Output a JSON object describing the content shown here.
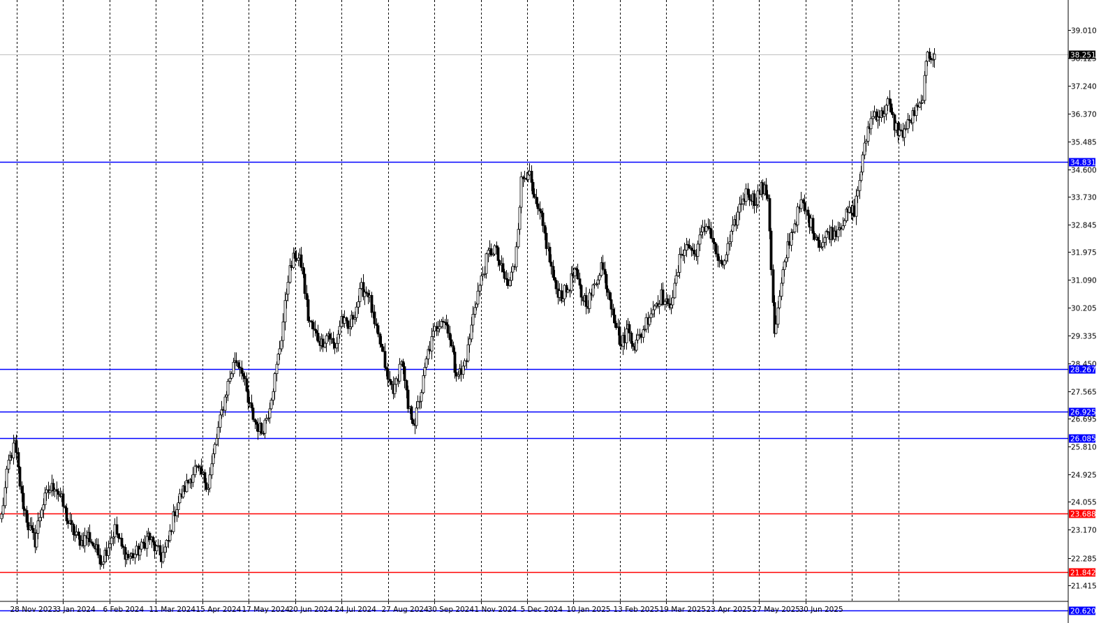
{
  "chart_data": {
    "type": "candlestick",
    "title": "",
    "xlabel": "",
    "ylabel": "",
    "ylim": [
      20.35,
      40.1
    ],
    "grid": {
      "vertical": true,
      "horizontal": false,
      "style": "dashed"
    },
    "y_ticks": [
      "39.010",
      "38.125",
      "37.240",
      "36.370",
      "35.485",
      "34.600",
      "33.730",
      "32.845",
      "31.975",
      "31.090",
      "30.205",
      "29.335",
      "28.450",
      "27.565",
      "26.695",
      "25.810",
      "24.925",
      "24.055",
      "23.170",
      "22.285",
      "21.415"
    ],
    "x_ticks": [
      "28 Nov 2023",
      "3 Jan 2024",
      "6 Feb 2024",
      "11 Mar 2024",
      "15 Apr 2024",
      "17 May 2024",
      "20 Jun 2024",
      "24 Jul 2024",
      "27 Aug 2024",
      "30 Sep 2024",
      "1 Nov 2024",
      "5 Dec 2024",
      "10 Jan 2025",
      "13 Feb 2025",
      "19 Mar 2025",
      "23 Apr 2025",
      "27 May 2025",
      "30 Jun 2025"
    ],
    "current_price": {
      "label": "38.251",
      "value": 38.251,
      "color": "#000000"
    },
    "levels": [
      {
        "label": "34.831",
        "value": 34.831,
        "color": "#0000ff"
      },
      {
        "label": "28.267",
        "value": 28.267,
        "color": "#0000ff"
      },
      {
        "label": "26.925",
        "value": 26.925,
        "color": "#0000ff"
      },
      {
        "label": "26.085",
        "value": 26.085,
        "color": "#0000ff"
      },
      {
        "label": "23.688",
        "value": 23.688,
        "color": "#ff0000"
      },
      {
        "label": "21.842",
        "value": 21.842,
        "color": "#ff0000"
      },
      {
        "label": "20.620",
        "value": 20.62,
        "color": "#0000ff"
      }
    ],
    "close_path": [
      23.6,
      25.3,
      25.9,
      24.2,
      23.3,
      22.8,
      23.9,
      24.4,
      24.6,
      24.1,
      23.4,
      23.0,
      22.8,
      23.0,
      22.6,
      22.2,
      22.7,
      23.2,
      22.6,
      22.3,
      22.4,
      22.6,
      23.0,
      22.6,
      22.3,
      22.8,
      23.8,
      24.3,
      24.7,
      25.1,
      24.9,
      24.6,
      25.8,
      26.9,
      27.8,
      28.6,
      28.3,
      27.2,
      26.6,
      26.3,
      26.9,
      28.0,
      29.3,
      31.2,
      31.9,
      31.6,
      29.9,
      29.4,
      29.1,
      29.4,
      28.9,
      29.9,
      29.5,
      30.1,
      30.8,
      30.7,
      29.6,
      28.9,
      27.9,
      27.6,
      28.6,
      27.0,
      26.6,
      27.6,
      28.8,
      29.5,
      29.9,
      29.6,
      28.3,
      28.1,
      28.9,
      30.3,
      31.1,
      31.9,
      32.1,
      31.4,
      30.9,
      31.6,
      34.2,
      34.6,
      33.5,
      33.0,
      32.0,
      30.9,
      30.6,
      30.8,
      31.4,
      30.6,
      30.4,
      30.9,
      31.6,
      30.8,
      29.9,
      29.0,
      29.6,
      29.0,
      29.4,
      29.9,
      30.3,
      30.6,
      30.2,
      30.8,
      32.0,
      32.2,
      31.9,
      32.5,
      32.9,
      32.1,
      31.4,
      32.1,
      32.8,
      33.6,
      33.9,
      33.6,
      34.0,
      33.8,
      29.3,
      30.9,
      32.2,
      32.9,
      33.5,
      33.1,
      32.6,
      32.2,
      32.6,
      32.6,
      32.9,
      33.2,
      33.3,
      34.6,
      35.9,
      36.4,
      36.3,
      36.7,
      36.0,
      35.7,
      36.0,
      36.4,
      36.6,
      38.2,
      38.25
    ]
  }
}
